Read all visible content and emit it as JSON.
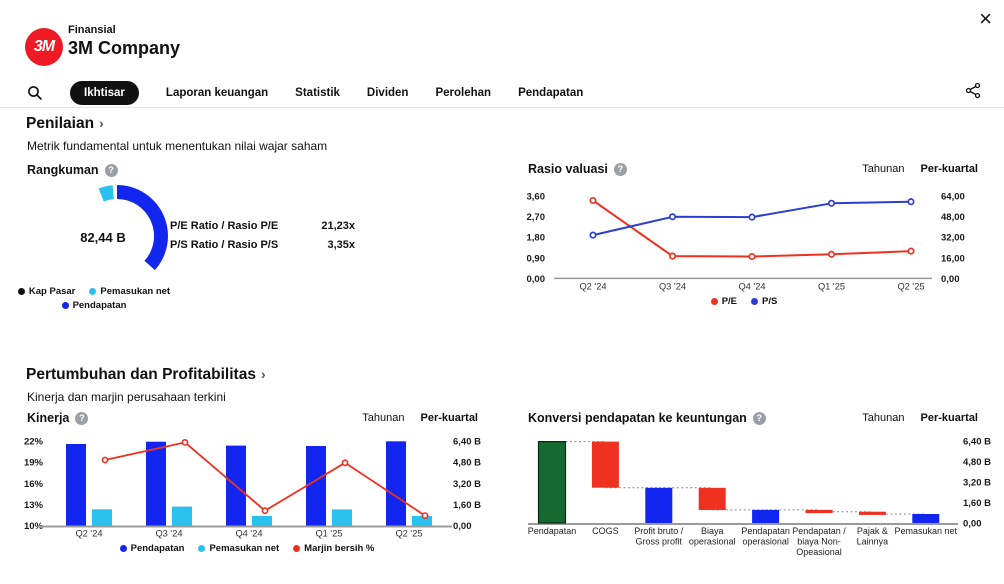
{
  "window": {
    "close_icon": "×"
  },
  "header": {
    "eyebrow": "Finansial",
    "title": "3M Company",
    "logo_text": "3M",
    "logo_color": "#ee1b24"
  },
  "nav": {
    "tabs": [
      {
        "label": "Ikhtisar",
        "active": true
      },
      {
        "label": "Laporan keuangan",
        "active": false
      },
      {
        "label": "Statistik",
        "active": false
      },
      {
        "label": "Dividen",
        "active": false
      },
      {
        "label": "Perolehan",
        "active": false
      },
      {
        "label": "Pendapatan",
        "active": false
      }
    ]
  },
  "icons": {
    "help": "?"
  },
  "toggles": {
    "annual": "Tahunan",
    "quarterly": "Per-kuartal",
    "selected": "Per-kuartal"
  },
  "sections": [
    {
      "title": "Penilaian",
      "chevron": "›",
      "subtitle": "Metrik fundamental untuk menentukan nilai wajar saham"
    },
    {
      "title": "Pertumbuhan dan Profitabilitas",
      "chevron": "›",
      "subtitle": "Kinerja dan marjin perusahaan terkini"
    }
  ],
  "summary_panel": {
    "title": "Rangkuman",
    "center_value": "82,44 B",
    "metrics": [
      {
        "label": "P/E Ratio / Rasio P/E",
        "value": "21,23x"
      },
      {
        "label": "P/S Ratio / Rasio P/S",
        "value": "3,35x"
      }
    ],
    "legend": [
      {
        "label": "Kap Pasar",
        "color": "#111111"
      },
      {
        "label": "Pemasukan net",
        "color": "#2bc1ee"
      },
      {
        "label": "Pendapatan",
        "color": "#1226f0"
      }
    ]
  },
  "chart_data": [
    {
      "id": "summary-gauge",
      "type": "gauge",
      "title": "Rangkuman",
      "center_label": "82,44 B",
      "angle_reference": "degrees clockwise from 12 o'clock",
      "segments": [
        {
          "name": "Pemasukan net",
          "color": "#2bc1ee",
          "start_deg": -21,
          "end_deg": -5
        },
        {
          "name": "Pendapatan",
          "color": "#1226f0",
          "start_deg": 0,
          "end_deg": 132
        }
      ]
    },
    {
      "id": "valuation-ratios",
      "type": "line",
      "title": "Rasio valuasi",
      "categories": [
        "Q2 '24",
        "Q3 '24",
        "Q4 '24",
        "Q1 '25",
        "Q2 '25"
      ],
      "series": [
        {
          "name": "P/E",
          "color": "#ee3120",
          "axis": "right",
          "values": [
            60.5,
            17.3,
            17.0,
            18.7,
            21.23
          ]
        },
        {
          "name": "P/S",
          "color": "#2b3ed1",
          "axis": "left",
          "values": [
            1.89,
            2.69,
            2.68,
            3.28,
            3.35
          ]
        }
      ],
      "left_axis": {
        "min": 0,
        "max": 3.6,
        "ticks": [
          "3,60",
          "2,70",
          "1,80",
          "0,90",
          "0,00"
        ]
      },
      "right_axis": {
        "min": 0,
        "max": 64,
        "ticks": [
          "64,00",
          "48,00",
          "32,00",
          "16,00",
          "0,00"
        ]
      },
      "grid": false,
      "legend_position": "bottom"
    },
    {
      "id": "performance",
      "type": "bar-line",
      "title": "Kinerja",
      "categories": [
        "Q2 '24",
        "Q3 '24",
        "Q4 '24",
        "Q1 '25",
        "Q2 '25"
      ],
      "bar_series": [
        {
          "name": "Pendapatan",
          "color": "#1226f0",
          "axis": "right",
          "unit": "B",
          "values": [
            6.17,
            6.35,
            6.05,
            6.02,
            6.38
          ]
        },
        {
          "name": "Pemasukan net",
          "color": "#2bc1ee",
          "axis": "right",
          "unit": "B",
          "values": [
            1.23,
            1.43,
            0.73,
            1.22,
            0.73
          ]
        }
      ],
      "line_series": [
        {
          "name": "Marjin bersih %",
          "color": "#ee3120",
          "axis": "left",
          "unit": "%",
          "values": [
            19.3,
            21.8,
            12.1,
            18.9,
            11.4
          ]
        }
      ],
      "left_axis": {
        "min": 10,
        "max": 22,
        "ticks": [
          "22%",
          "19%",
          "16%",
          "13%",
          "10%"
        ]
      },
      "right_axis": {
        "min": 0,
        "max": 6.4,
        "ticks": [
          "6,40 B",
          "4,80 B",
          "3,20 B",
          "1,60 B",
          "0,00"
        ]
      },
      "grid": false,
      "legend_position": "bottom"
    },
    {
      "id": "profit-conversion",
      "type": "waterfall",
      "title": "Konversi pendapatan ke keuntungan",
      "unit": "B",
      "right_axis": {
        "min": 0,
        "max": 6.4,
        "ticks": [
          "6,40 B",
          "4,80 B",
          "3,20 B",
          "1,60 B",
          "0,00"
        ]
      },
      "bars": [
        {
          "label": "Pendapatan",
          "lines": [
            "Pendapatan"
          ],
          "from": 0,
          "to": 6.35,
          "color": "#15682f",
          "stroke": "#06290f"
        },
        {
          "label": "COGS",
          "lines": [
            "COGS"
          ],
          "from": 6.35,
          "to": 2.75,
          "color": "#ee3120"
        },
        {
          "label": "Profit bruto / Gross profit",
          "lines": [
            "Profit bruto /",
            "Gross profit"
          ],
          "from": 0,
          "to": 2.75,
          "color": "#1226f0"
        },
        {
          "label": "Biaya operasional",
          "lines": [
            "Biaya",
            "operasional"
          ],
          "from": 2.75,
          "to": 1.02,
          "color": "#ee3120"
        },
        {
          "label": "Pendapatan operasional",
          "lines": [
            "Pendapatan",
            "operasional"
          ],
          "from": 0,
          "to": 1.02,
          "color": "#1226f0"
        },
        {
          "label": "Pendapatan / biaya Non-Opeasional",
          "lines": [
            "Pendapatan /",
            "biaya Non-",
            "Opeasional"
          ],
          "from": 1.02,
          "to": 0.88,
          "color": "#ee3120"
        },
        {
          "label": "Pajak & Lainnya",
          "lines": [
            "Pajak &",
            "Lainnya"
          ],
          "from": 0.88,
          "to": 0.7,
          "color": "#ee3120"
        },
        {
          "label": "Pemasukan net",
          "lines": [
            "Pemasukan net"
          ],
          "from": 0,
          "to": 0.7,
          "color": "#1226f0"
        }
      ]
    }
  ]
}
